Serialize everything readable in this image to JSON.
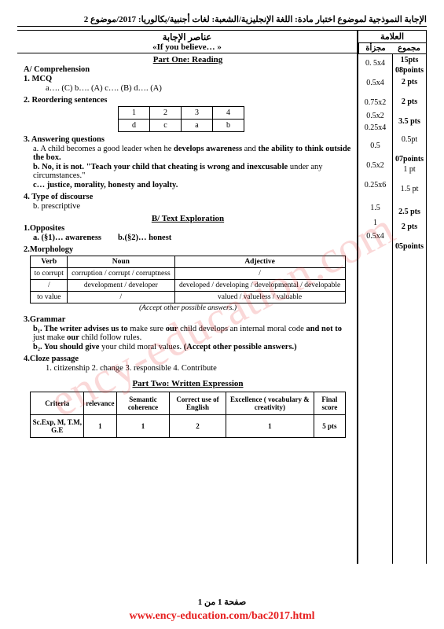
{
  "header": "الإجابة النموذجية لموضوع اختبار مادة: اللغة الإنجليزية/الشعبة: لغات أجنبية/بكالوريا: 2017/موضوع 2",
  "watermark": "ency-education.com",
  "marks": {
    "title": "العلامة",
    "col_total": "مجموع",
    "col_part": "مجزأة",
    "rows_total": [
      "15pts",
      "08points",
      "2 pts",
      "",
      "2 pts",
      "",
      "",
      "3.5 pts",
      "",
      "",
      "",
      "0.5pt",
      "",
      "07points",
      "1 pt",
      "",
      "",
      "",
      "1.5 pt",
      "",
      "",
      "",
      "2.5 pts",
      "",
      "",
      "2 pts",
      "",
      "",
      "",
      "",
      "05points"
    ],
    "rows_part": [
      "",
      "",
      "0. 5x4",
      "",
      "0.5x4",
      "",
      "",
      "0.75x2",
      "0.5x2",
      "0.25x4",
      "",
      "0.5",
      "",
      "",
      "0.5x2",
      "",
      "",
      "",
      "0.25x6",
      "",
      "",
      "",
      "1.5",
      "1",
      "",
      "0.5x4",
      "",
      "",
      "",
      "",
      ""
    ]
  },
  "content": {
    "head_ar": "عناصر الإجابة",
    "quote": "«If you believe… »",
    "part1": "Part One: Reading",
    "A": "A/ Comprehension",
    "q1": "1. MCQ",
    "q1_ans": "a…. (C)     b…. (A)     c…. (B)     d…. (A)",
    "q2": "2. Reordering sentences",
    "reorder": {
      "head": [
        "1",
        "2",
        "3",
        "4"
      ],
      "row": [
        "d",
        "c",
        "a",
        "b"
      ]
    },
    "q3": "3. Answering questions",
    "q3a_pre": "a. A child becomes a good leader when he ",
    "q3a_b1": "develops awareness",
    "q3a_mid": " and ",
    "q3a_b2": "the ability to think outside the box.",
    "q3b_pre": "b. No, it is not.  \"Teach your child that ",
    "q3b_b": "cheating is wrong and inexcusable",
    "q3b_post": " under any circumstances.\"",
    "q3c_pre": "c… ",
    "q3c_b": "justice, morality, honesty and loyalty.",
    "q4": "4. Type of discourse",
    "q4a": "b. prescriptive",
    "B": "B/ Text Exploration",
    "b1": "1.Opposites",
    "b1a": "a. (§1)… awareness",
    "b1b": "b.(§2)… honest",
    "b2": "2.Morphology",
    "morph": {
      "head": [
        "Verb",
        "Noun",
        "Adjective"
      ],
      "rows": [
        [
          "to corrupt",
          "corruption / corrupt / corruptness",
          "/"
        ],
        [
          "/",
          "development / developer",
          "developed / developing / developmental / developable"
        ],
        [
          "to value",
          "/",
          "valued / valueless / valuable"
        ]
      ]
    },
    "accept": "(Accept other possible answers.)",
    "b3": "3.Grammar",
    "b3_1a": "b₁. The writer advises us ",
    "b3_1b": "to",
    "b3_1c": " make sure ",
    "b3_1d": "our",
    "b3_1e": " child develops an internal moral code ",
    "b3_1f": "and not to",
    "b3_1g": " just make ",
    "b3_1h": "our",
    "b3_1i": " child follow rules.",
    "b3_2a": "b₂. You ",
    "b3_2b": "should give",
    "b3_2c": " your child moral values. ",
    "b3_2d": "(Accept other possible answers.)",
    "b4": "4.Cloze passage",
    "b4_ans": "1. citizenship      2. change      3. responsible      4. Contribute",
    "part2": "Part Two: Written Expression",
    "criteria": {
      "head": [
        "Criteria",
        "relevance",
        "Semantic coherence",
        "Correct use of English",
        "Excellence ( vocabulary & creativity)",
        "Final score"
      ],
      "row": [
        "Sc.Exp, M, T.M, G.E",
        "1",
        "1",
        "2",
        "1",
        "5 pts"
      ]
    }
  },
  "footer_page": "صفحة 1 من 1",
  "footer_url": "www.ency-education.com/bac2017.html"
}
